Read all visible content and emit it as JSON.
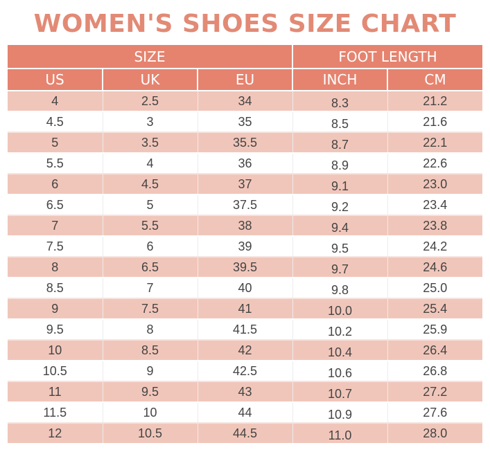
{
  "title": "WOMEN'S SHOES SIZE CHART",
  "colors": {
    "title": "#e28a75",
    "header": "#e5836f",
    "band": "#f1c6ba"
  },
  "groups": {
    "size": "SIZE",
    "foot_length": "FOOT LENGTH"
  },
  "columns": {
    "us": "US",
    "uk": "UK",
    "eu": "EU",
    "inch": "INCH",
    "cm": "CM"
  },
  "rows": [
    [
      "4",
      "2.5",
      "34",
      "8.3",
      "21.2"
    ],
    [
      "4.5",
      "3",
      "35",
      "8.5",
      "21.6"
    ],
    [
      "5",
      "3.5",
      "35.5",
      "8.7",
      "22.1"
    ],
    [
      "5.5",
      "4",
      "36",
      "8.9",
      "22.6"
    ],
    [
      "6",
      "4.5",
      "37",
      "9.1",
      "23.0"
    ],
    [
      "6.5",
      "5",
      "37.5",
      "9.2",
      "23.4"
    ],
    [
      "7",
      "5.5",
      "38",
      "9.4",
      "23.8"
    ],
    [
      "7.5",
      "6",
      "39",
      "9.5",
      "24.2"
    ],
    [
      "8",
      "6.5",
      "39.5",
      "9.7",
      "24.6"
    ],
    [
      "8.5",
      "7",
      "40",
      "9.8",
      "25.0"
    ],
    [
      "9",
      "7.5",
      "41",
      "10.0",
      "25.4"
    ],
    [
      "9.5",
      "8",
      "41.5",
      "10.2",
      "25.9"
    ],
    [
      "10",
      "8.5",
      "42",
      "10.4",
      "26.4"
    ],
    [
      "10.5",
      "9",
      "42.5",
      "10.6",
      "26.8"
    ],
    [
      "11",
      "9.5",
      "43",
      "10.7",
      "27.2"
    ],
    [
      "11.5",
      "10",
      "44",
      "10.9",
      "27.6"
    ],
    [
      "12",
      "10.5",
      "44.5",
      "11.0",
      "28.0"
    ]
  ]
}
